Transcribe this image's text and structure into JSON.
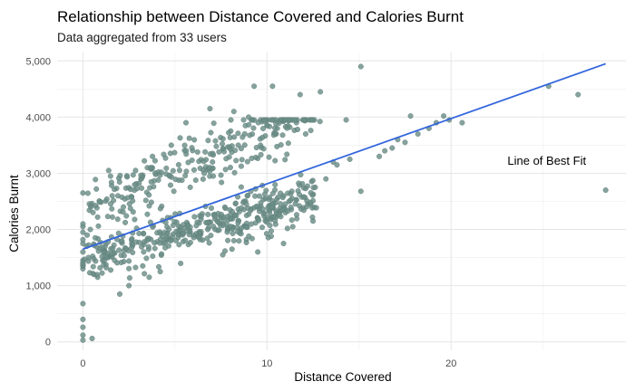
{
  "chart_data": {
    "type": "scatter",
    "title": "Relationship between Distance Covered and Calories Burnt",
    "subtitle": "Data aggregated from 33 users",
    "xlabel": "Distance Covered",
    "ylabel": "Calories Burnt",
    "xlim": [
      -1.4,
      29.5
    ],
    "ylim": [
      -150,
      5150
    ],
    "x_ticks": [
      0,
      10,
      20
    ],
    "x_tick_labels": [
      "0",
      "10",
      "20"
    ],
    "y_ticks": [
      0,
      1000,
      2000,
      3000,
      4000,
      5000
    ],
    "y_tick_labels": [
      "0",
      "1,000",
      "2,000",
      "3,000",
      "4,000",
      "5,000"
    ],
    "grid": true,
    "point_color": "#6b8e88",
    "line_color": "#3366dd",
    "annotation": {
      "text": "Line of Best Fit",
      "x": 25.2,
      "y": 3150
    },
    "trend_line": {
      "x": [
        0,
        28.4
      ],
      "y": [
        1650,
        4950
      ]
    },
    "points": [
      {
        "x": 0,
        "y": 30
      },
      {
        "x": 0,
        "y": 120
      },
      {
        "x": 0,
        "y": 260
      },
      {
        "x": 0,
        "y": 400
      },
      {
        "x": 0,
        "y": 680
      },
      {
        "x": 0.5,
        "y": 60
      },
      {
        "x": 0,
        "y": 1300
      },
      {
        "x": 0,
        "y": 1450
      },
      {
        "x": 0,
        "y": 1600
      },
      {
        "x": 0,
        "y": 1750
      },
      {
        "x": 0,
        "y": 1820
      },
      {
        "x": 0,
        "y": 1950
      },
      {
        "x": 0,
        "y": 2050
      },
      {
        "x": 0,
        "y": 2100
      },
      {
        "x": 0,
        "y": 2650
      },
      {
        "x": 0.3,
        "y": 1500
      },
      {
        "x": 0.4,
        "y": 2000
      },
      {
        "x": 0.2,
        "y": 1700
      },
      {
        "x": 15.1,
        "y": 4900
      },
      {
        "x": 10.3,
        "y": 4550
      },
      {
        "x": 9.3,
        "y": 4550
      },
      {
        "x": 11.8,
        "y": 4400
      },
      {
        "x": 12.9,
        "y": 4450
      },
      {
        "x": 14.3,
        "y": 3950
      },
      {
        "x": 17.8,
        "y": 4020
      },
      {
        "x": 19.6,
        "y": 4020
      },
      {
        "x": 20.6,
        "y": 3900
      },
      {
        "x": 25.3,
        "y": 4550
      },
      {
        "x": 26.9,
        "y": 4400
      },
      {
        "x": 28.4,
        "y": 2700
      },
      {
        "x": 15.1,
        "y": 2680
      },
      {
        "x": 16.1,
        "y": 3300
      },
      {
        "x": 16.8,
        "y": 3450
      },
      {
        "x": 17.5,
        "y": 3550
      },
      {
        "x": 18.2,
        "y": 3700
      },
      {
        "x": 18.8,
        "y": 3800
      },
      {
        "x": 19.2,
        "y": 3900
      },
      {
        "x": 13.2,
        "y": 2900
      },
      {
        "x": 12.5,
        "y": 2150
      },
      {
        "x": 11.2,
        "y": 2500
      },
      {
        "x": 10.9,
        "y": 1750
      },
      {
        "x": 11.0,
        "y": 2300
      },
      {
        "x": 10.2,
        "y": 2200
      },
      {
        "x": 13.8,
        "y": 3150
      },
      {
        "x": 14.5,
        "y": 3250
      },
      {
        "x": 1.4,
        "y": 3050
      },
      {
        "x": 1.5,
        "y": 2950
      },
      {
        "x": 2.0,
        "y": 850
      },
      {
        "x": 2.5,
        "y": 1000
      },
      {
        "x": 1.9,
        "y": 2600
      },
      {
        "x": 0.6,
        "y": 1200
      },
      {
        "x": 0.8,
        "y": 1150
      },
      {
        "x": 10.5,
        "y": 3700
      },
      {
        "x": 9.0,
        "y": 4000
      },
      {
        "x": 8.2,
        "y": 4100
      },
      {
        "x": 6.9,
        "y": 4150
      },
      {
        "x": 11.6,
        "y": 3900
      },
      {
        "x": 12.1,
        "y": 3700
      },
      {
        "x": 13.6,
        "y": 3200
      },
      {
        "x": 16.4,
        "y": 3400
      },
      {
        "x": 17.1,
        "y": 3600
      },
      {
        "x": 19.9,
        "y": 3950
      },
      {
        "x": 7.6,
        "y": 1550
      },
      {
        "x": 8.1,
        "y": 1650
      },
      {
        "x": 9.5,
        "y": 1600
      },
      {
        "x": 4.2,
        "y": 1250
      },
      {
        "x": 3.6,
        "y": 1150
      },
      {
        "x": 5.6,
        "y": 3900
      },
      {
        "x": 4.8,
        "y": 3500
      },
      {
        "x": 3.5,
        "y": 3100
      },
      {
        "x": 2.2,
        "y": 2400
      },
      {
        "x": 2.8,
        "y": 2700
      }
    ],
    "cluster_generator": {
      "count": 700,
      "seed": 17
    }
  }
}
